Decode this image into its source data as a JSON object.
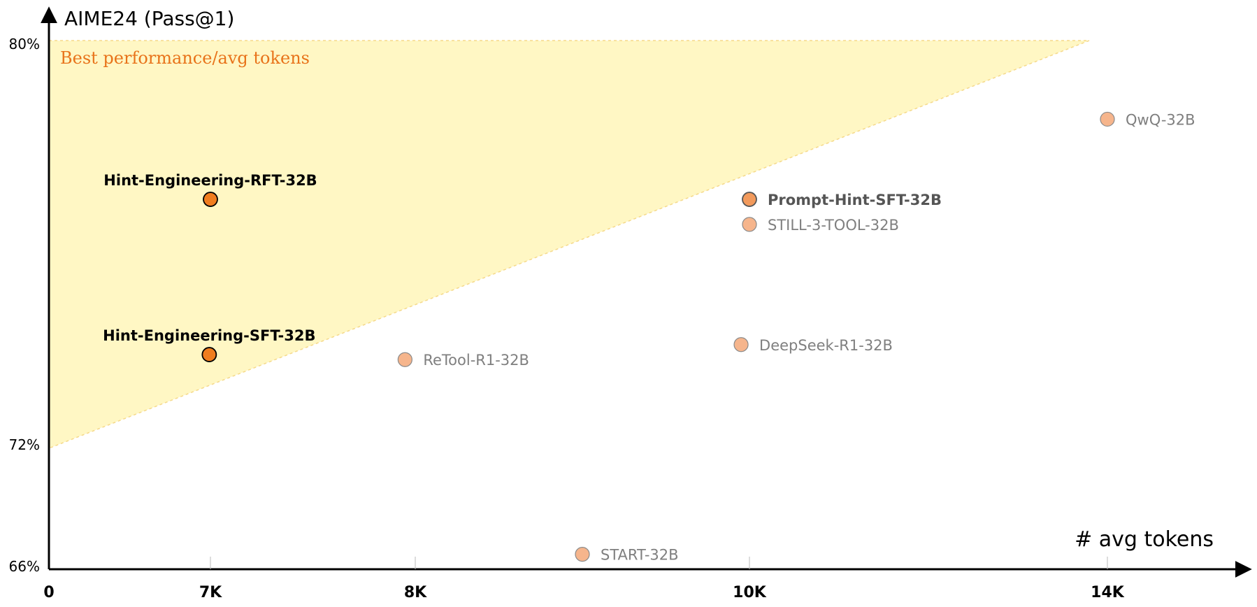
{
  "chart_data": {
    "type": "scatter",
    "title": "",
    "ylabel": "AIME24 (Pass@1)",
    "xlabel": "# avg tokens",
    "y_ticks": [
      {
        "value": 80,
        "label": "80%"
      },
      {
        "value": 72,
        "label": "72%"
      },
      {
        "value": 66,
        "label": "66%"
      }
    ],
    "x_ticks": [
      {
        "value": 0,
        "label": "0"
      },
      {
        "value": 7000,
        "label": "7K"
      },
      {
        "value": 8000,
        "label": "8K"
      },
      {
        "value": 10000,
        "label": "10K"
      },
      {
        "value": 14000,
        "label": "14K"
      }
    ],
    "region": {
      "label": "Best performance/avg tokens",
      "color": "#fff7c4",
      "border_color": "#f5d98a"
    },
    "points": [
      {
        "name": "Hint-Engineering-RFT-32B",
        "x": 7000,
        "y": 76.9,
        "emphasis": "primary"
      },
      {
        "name": "Hint-Engineering-SFT-32B",
        "x": 6950,
        "y": 73.8,
        "emphasis": "primary"
      },
      {
        "name": "Prompt-Hint-SFT-32B",
        "x": 10000,
        "y": 76.9,
        "emphasis": "secondary"
      },
      {
        "name": "STILL-3-TOOL-32B",
        "x": 10000,
        "y": 76.4,
        "emphasis": "normal"
      },
      {
        "name": "QwQ-32B",
        "x": 14000,
        "y": 78.5,
        "emphasis": "normal"
      },
      {
        "name": "ReTool-R1-32B",
        "x": 7950,
        "y": 73.7,
        "emphasis": "normal"
      },
      {
        "name": "DeepSeek-R1-32B",
        "x": 9950,
        "y": 74.0,
        "emphasis": "normal"
      },
      {
        "name": "START-32B",
        "x": 9000,
        "y": 66.6,
        "emphasis": "normal"
      }
    ],
    "colors": {
      "primary": "#f07d1f",
      "secondary": "#f29a5c",
      "normal": "#f6b58c",
      "label_primary": "#000000",
      "label_secondary": "#555555",
      "label_normal": "#7f7f7f"
    }
  }
}
